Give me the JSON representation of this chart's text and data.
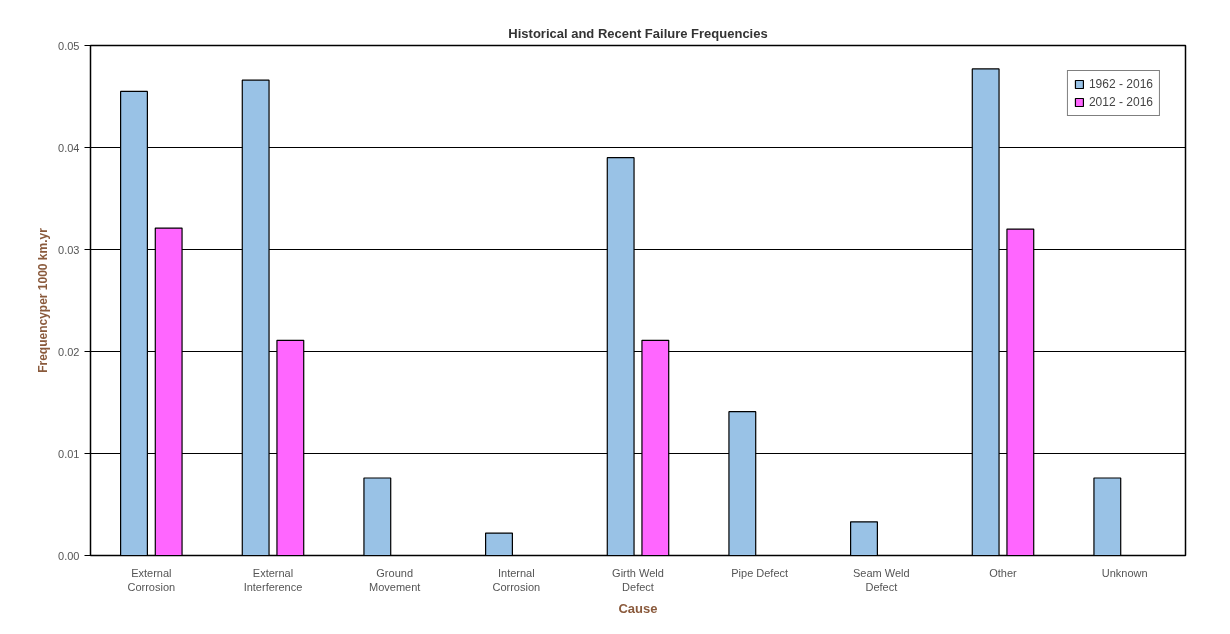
{
  "chart_data": {
    "type": "bar",
    "title": "Historical and Recent Failure Frequencies",
    "xlabel": "Cause",
    "ylabel": "Frequencyper 1000 km.yr",
    "categories": [
      "External Corrosion",
      "External Interference",
      "Ground Movement",
      "Internal Corrosion",
      "Girth Weld Defect",
      "Pipe Defect",
      "Seam Weld Defect",
      "Other",
      "Unknown"
    ],
    "series": [
      {
        "name": "1962 - 2016",
        "color": "#99c2e6",
        "values": [
          0.0455,
          0.0466,
          0.0076,
          0.0022,
          0.039,
          0.0141,
          0.0033,
          0.0477,
          0.0076
        ]
      },
      {
        "name": "2012 - 2016",
        "color": "#ff66ff",
        "values": [
          0.0321,
          0.0211,
          null,
          null,
          0.0211,
          null,
          null,
          0.032,
          null
        ]
      }
    ],
    "ylim": [
      0,
      0.05
    ],
    "yticks": [
      {
        "value": 0,
        "label": "0.00"
      },
      0.01,
      0.02,
      0.03,
      0.04,
      0.05
    ],
    "grid": "y",
    "legend": "top right"
  }
}
